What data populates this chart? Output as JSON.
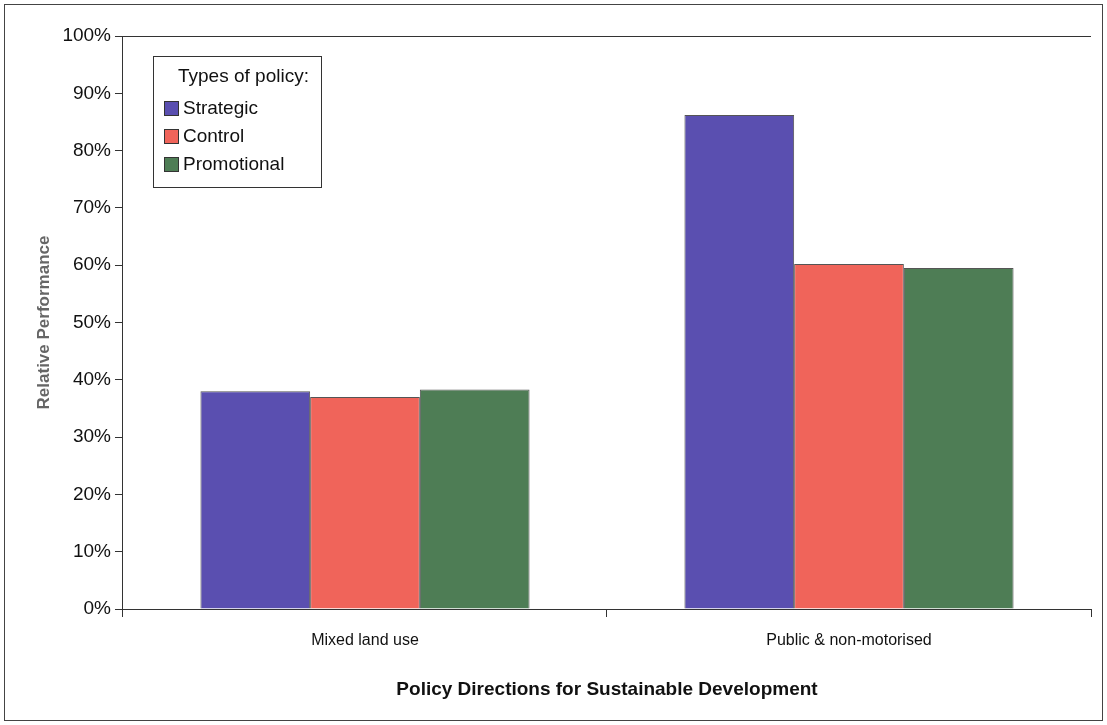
{
  "chart_data": {
    "type": "bar",
    "xlabel": "Policy Directions for Sustainable Development",
    "ylabel": "Relative Performance",
    "legend_title": "Types of policy:",
    "legend": "top left",
    "grid": false,
    "categories": [
      "Mixed land use",
      "Public & non-motorised"
    ],
    "series": [
      {
        "name": "Strategic",
        "color": "#5a4fb0",
        "values": [
          38.0,
          86.2
        ]
      },
      {
        "name": "Control",
        "color": "#f0645a",
        "values": [
          37.0,
          60.2
        ]
      },
      {
        "name": "Promotional",
        "color": "#4e7d55",
        "values": [
          38.3,
          59.5
        ]
      }
    ],
    "ylim": [
      0,
      100
    ],
    "yticks": [
      {
        "value": 0,
        "label": "0%"
      },
      {
        "value": 10,
        "label": "10%"
      },
      {
        "value": 20,
        "label": "20%"
      },
      {
        "value": 30,
        "label": "30%"
      },
      {
        "value": 40,
        "label": "40%"
      },
      {
        "value": 50,
        "label": "50%"
      },
      {
        "value": 60,
        "label": "60%"
      },
      {
        "value": 70,
        "label": "70%"
      },
      {
        "value": 80,
        "label": "80%"
      },
      {
        "value": 90,
        "label": "90%"
      },
      {
        "value": 100,
        "label": "100%"
      }
    ]
  }
}
